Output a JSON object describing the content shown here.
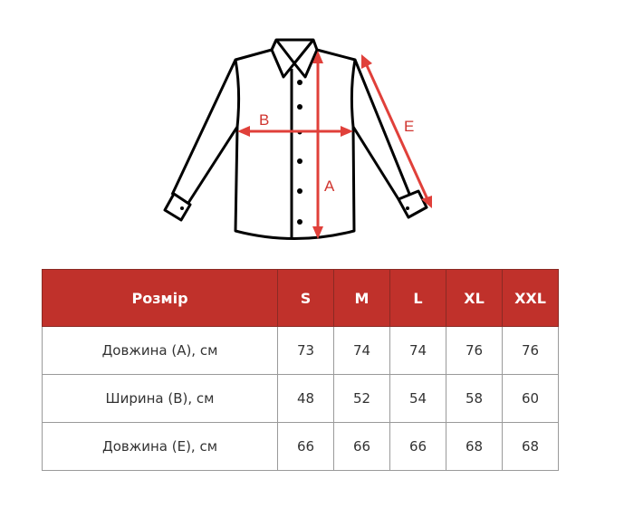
{
  "diagram": {
    "labels": {
      "a": "A",
      "b": "B",
      "e": "E"
    },
    "colors": {
      "arrow": "#e0403a",
      "outline": "#000000"
    }
  },
  "table": {
    "header_color": "#c0312b",
    "headers": [
      "Розмір",
      "S",
      "M",
      "L",
      "XL",
      "XXL"
    ],
    "rows": [
      {
        "label": "Довжина (А), см",
        "values": [
          "73",
          "74",
          "74",
          "76",
          "76"
        ]
      },
      {
        "label": "Ширина (В), см",
        "values": [
          "48",
          "52",
          "54",
          "58",
          "60"
        ]
      },
      {
        "label": "Довжина (Е), см",
        "values": [
          "66",
          "66",
          "66",
          "68",
          "68"
        ]
      }
    ]
  }
}
